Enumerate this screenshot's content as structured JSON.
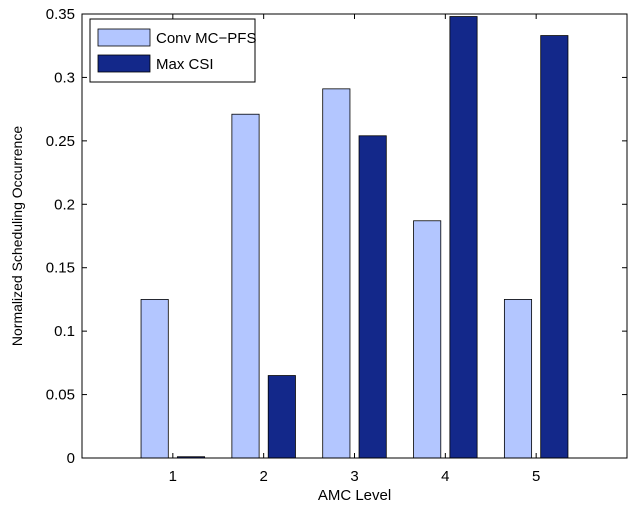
{
  "chart_data": {
    "type": "bar",
    "title": "",
    "xlabel": "AMC Level",
    "ylabel": "Normalized Scheduling Occurrence",
    "categories": [
      "1",
      "2",
      "3",
      "4",
      "5"
    ],
    "ylim": [
      0,
      0.35
    ],
    "yticks": [
      0,
      0.05,
      0.1,
      0.15,
      0.2,
      0.25,
      0.3,
      0.35
    ],
    "ytick_labels": [
      "0",
      "0.05",
      "0.1",
      "0.15",
      "0.2",
      "0.25",
      "0.3",
      "0.35"
    ],
    "grid": false,
    "legend_position": "top-left",
    "series": [
      {
        "name": "Conv MC−PFS",
        "color": "#b3c6ff",
        "values": [
          0.125,
          0.271,
          0.291,
          0.187,
          0.125
        ]
      },
      {
        "name": "Max CSI",
        "color": "#13288a",
        "values": [
          0.001,
          0.065,
          0.254,
          0.348,
          0.333
        ]
      }
    ]
  }
}
